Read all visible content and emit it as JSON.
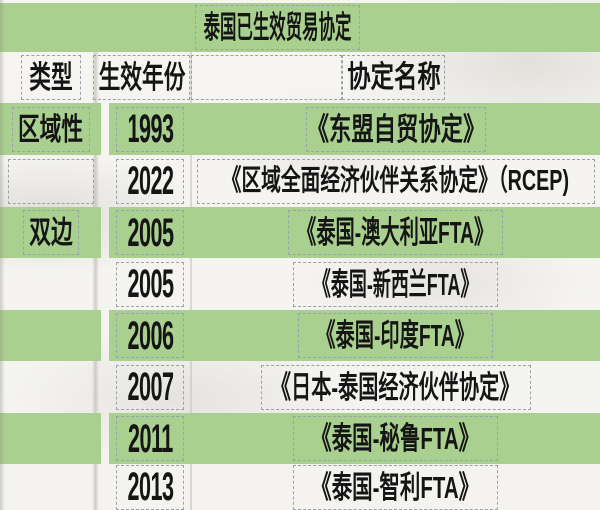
{
  "title": "泰国已生效贸易协定",
  "columns": {
    "type": "类型",
    "year": "生效年份",
    "name": "协定名称"
  },
  "rows": [
    {
      "type": "区域性",
      "year": "1993",
      "name": "《东盟自贸协定》"
    },
    {
      "type": "",
      "year": "2022",
      "name": "《区域全面经济伙伴关系协定》（RCEP)"
    },
    {
      "type": "双边",
      "year": "2005",
      "name": "《泰国-澳大利亚FTA》"
    },
    {
      "type": "",
      "year": "2005",
      "name": "《泰国-新西兰FTA》"
    },
    {
      "type": "",
      "year": "2006",
      "name": "《泰国-印度FTA》"
    },
    {
      "type": "",
      "year": "2007",
      "name": "《日本-泰国经济伙伴协定》"
    },
    {
      "type": "",
      "year": "2011",
      "name": "《泰国-秘鲁FTA》"
    },
    {
      "type": "",
      "year": "2013",
      "name": "《泰国-智利FTA》"
    }
  ],
  "colors": {
    "row_green": "#a9d08e",
    "text": "#151515",
    "dashed_outline": "#99a3ab",
    "background": "#f5f4f1"
  }
}
